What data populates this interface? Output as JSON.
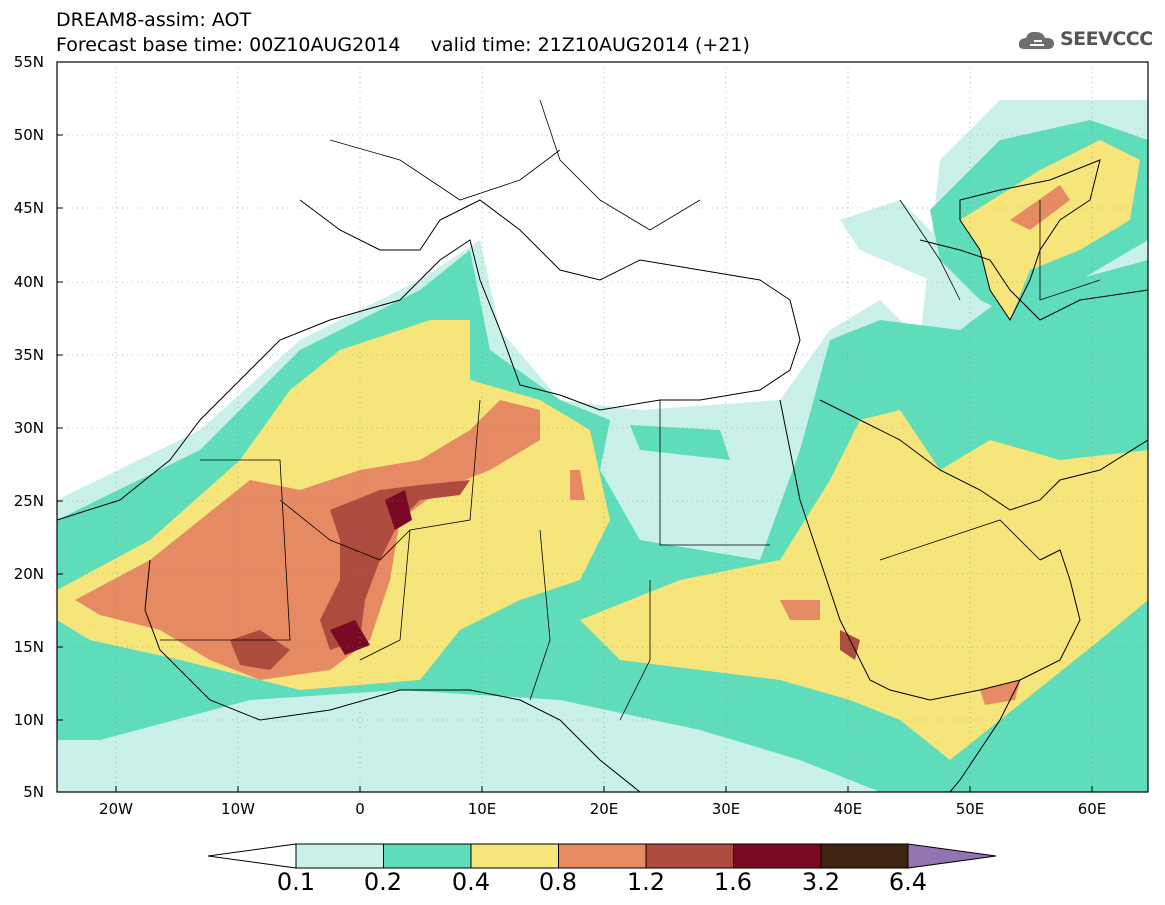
{
  "title": {
    "line1": "DREAM8-assim: AOT",
    "line2": "Forecast base time: 00Z10AUG2014     valid time: 21Z10AUG2014 (+21)"
  },
  "logo": {
    "text": "SEEVCCC",
    "icon": "cloud-icon"
  },
  "axes": {
    "lat_labels": [
      "55N",
      "50N",
      "45N",
      "40N",
      "35N",
      "30N",
      "25N",
      "20N",
      "15N",
      "10N",
      "5N"
    ],
    "lon_labels": [
      "20W",
      "10W",
      "0",
      "10E",
      "20E",
      "30E",
      "40E",
      "50E",
      "60E"
    ]
  },
  "legend": {
    "levels": [
      "0.1",
      "0.2",
      "0.4",
      "0.8",
      "1.2",
      "1.6",
      "3.2",
      "6.4"
    ],
    "colors": [
      "#c9f1ea",
      "#5fdcb9",
      "#f5e57a",
      "#e68a64",
      "#ad4b3e",
      "#7a0a24",
      "#3f2412",
      "#9474b0"
    ]
  }
}
